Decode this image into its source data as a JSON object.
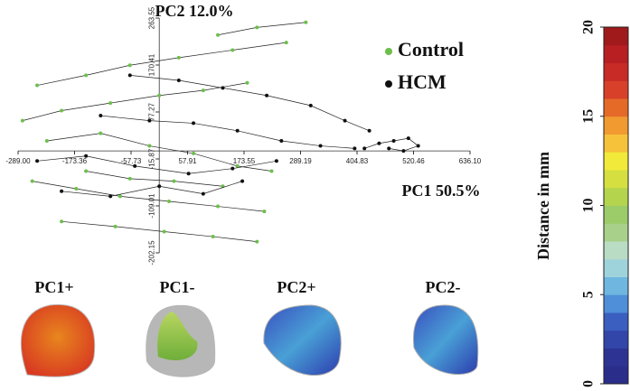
{
  "chart_data": {
    "type": "scatter",
    "xlabel": "PC1 50.5%",
    "ylabel": "PC2 12.0%",
    "xlim": [
      -289.0,
      636.1
    ],
    "ylim": [
      -202.15,
      263.55
    ],
    "xticks": [
      {
        "value": -289.0,
        "label": "-289.00"
      },
      -173.36,
      -57.73,
      57.91,
      173.55,
      289.19,
      404.83,
      520.46,
      {
        "value": 636.1,
        "label": "636.10"
      }
    ],
    "yticks": [
      -202.15,
      -109.01,
      -15.87,
      77.27,
      170.41,
      263.55
    ],
    "series": [
      {
        "name": "Control",
        "color": "#6cbf4a",
        "x": [
          -250,
          -150,
          -60,
          40,
          150,
          260,
          null,
          120,
          200,
          300,
          null,
          -280,
          -200,
          -100,
          0,
          90,
          180,
          null,
          -230,
          -120,
          -20,
          70,
          160,
          230,
          null,
          -260,
          -170,
          -80,
          20,
          120,
          215,
          null,
          -200,
          -90,
          10,
          110,
          200,
          null,
          -150,
          -60,
          30,
          130
        ],
        "values": [
          130,
          150,
          170,
          185,
          200,
          215,
          null,
          230,
          245,
          255,
          null,
          60,
          80,
          95,
          110,
          120,
          135,
          null,
          20,
          35,
          10,
          -5,
          -30,
          -40,
          null,
          -60,
          -75,
          -90,
          -100,
          -110,
          -120,
          null,
          -140,
          -150,
          -160,
          -170,
          -180,
          null,
          -40,
          -55,
          -60,
          -70
        ]
      },
      {
        "name": "HCM",
        "color": "#111111",
        "x": [
          -60,
          40,
          130,
          220,
          310,
          380,
          430,
          null,
          -120,
          -20,
          70,
          160,
          250,
          330,
          400,
          null,
          -250,
          -150,
          -50,
          60,
          150,
          240,
          null,
          420,
          450,
          480,
          510,
          530,
          500,
          470,
          null,
          -200,
          -100,
          0,
          90,
          170
        ],
        "values": [
          150,
          140,
          125,
          110,
          90,
          60,
          40,
          null,
          70,
          60,
          55,
          40,
          20,
          10,
          5,
          null,
          -20,
          -10,
          -30,
          -45,
          -35,
          -20,
          null,
          5,
          15,
          20,
          25,
          10,
          0,
          5,
          null,
          -80,
          -90,
          -70,
          -85,
          -60
        ]
      }
    ]
  },
  "colorbar": {
    "label": "Distance in mm",
    "lim": [
      0,
      20
    ],
    "ticks": [
      0,
      5,
      10,
      15,
      20
    ],
    "colors": [
      "#2a2d8a",
      "#2c3393",
      "#3245a8",
      "#3a5fc0",
      "#4f8ed8",
      "#6fb6e0",
      "#9fd3dc",
      "#b9dcc4",
      "#a8d08a",
      "#9ccb6a",
      "#b4d44e",
      "#d5e040",
      "#f1ea3a",
      "#f6c23a",
      "#f09a30",
      "#e56a28",
      "#d8402a",
      "#c82a26",
      "#b71f22",
      "#a01a1c"
    ]
  },
  "shapes": [
    {
      "label": "PC1+"
    },
    {
      "label": "PC1-"
    },
    {
      "label": "PC2+"
    },
    {
      "label": "PC2-"
    }
  ]
}
